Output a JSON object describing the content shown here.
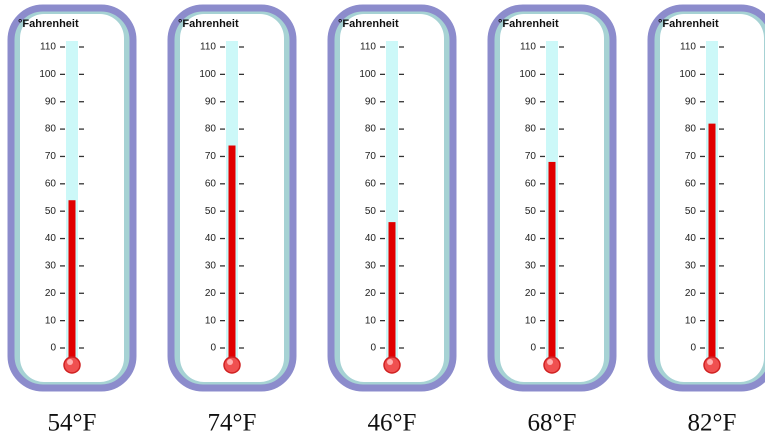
{
  "chart_data": {
    "type": "thermometer",
    "axis_label": "°Fahrenheit",
    "values": [
      54,
      74,
      46,
      68,
      82
    ],
    "value_labels": [
      "54°F",
      "74°F",
      "46°F",
      "68°F",
      "82°F"
    ],
    "color": "#e00000",
    "ylim": [
      0,
      110
    ],
    "yticks": [
      0,
      10,
      20,
      30,
      40,
      50,
      60,
      70,
      80,
      90,
      100,
      110
    ]
  }
}
